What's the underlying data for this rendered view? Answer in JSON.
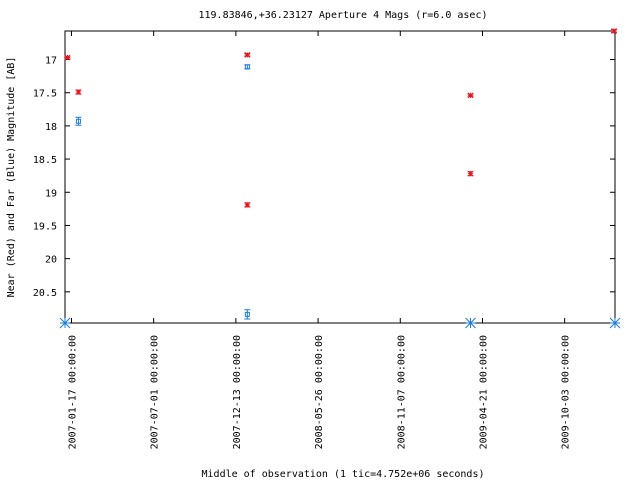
{
  "chart_data": {
    "type": "scatter",
    "title": "119.83846,+36.23127   Aperture 4 Mags (r=6.0 asec)",
    "xlabel": "Middle of observation (1 tic=4.752e+06 seconds)",
    "ylabel": "Near (Red) and Far (Blue) Magnitude [AB]",
    "x_axis": {
      "type": "date",
      "range": [
        "2007-01-04",
        "2010-01-12"
      ],
      "ticks": [
        "2007-01-17 00:00:00",
        "2007-07-01 00:00:00",
        "2007-12-13 00:00:00",
        "2008-05-26 00:00:00",
        "2008-11-07 00:00:00",
        "2009-04-21 00:00:00",
        "2009-10-03 00:00:00"
      ]
    },
    "y_axis": {
      "inverted": true,
      "range": [
        20.97,
        16.57
      ],
      "ticks": [
        "17",
        "17.5",
        "18",
        "18.5",
        "19",
        "19.5",
        "20",
        "20.5"
      ]
    },
    "grid": false,
    "series": [
      {
        "name": "Near",
        "color": "#e8141c",
        "marker": "asterisk",
        "points": [
          {
            "x": "2007-01-09",
            "y": 16.97,
            "err": 0.02
          },
          {
            "x": "2007-01-31",
            "y": 17.49,
            "err": 0.03
          },
          {
            "x": "2008-01-05",
            "y": 16.93,
            "err": 0.02
          },
          {
            "x": "2008-01-05",
            "y": 19.19,
            "err": 0.03
          },
          {
            "x": "2009-03-28",
            "y": 17.54,
            "err": 0.02
          },
          {
            "x": "2009-03-28",
            "y": 18.72,
            "err": 0.03
          },
          {
            "x": "2010-01-10",
            "y": 16.57,
            "err": 0.02
          }
        ]
      },
      {
        "name": "Far",
        "color": "#1c7cd8",
        "marker": "square",
        "points": [
          {
            "x": "2007-01-31",
            "y": 17.93,
            "err": 0.06
          },
          {
            "x": "2008-01-05",
            "y": 17.11,
            "err": 0.03
          },
          {
            "x": "2008-01-05",
            "y": 20.84,
            "err": 0.07
          }
        ]
      }
    ],
    "baseline_markers": {
      "color": "#1c7cd8",
      "marker": "asterisk",
      "x": [
        "2007-01-04",
        "2009-03-28",
        "2010-01-12"
      ]
    }
  }
}
